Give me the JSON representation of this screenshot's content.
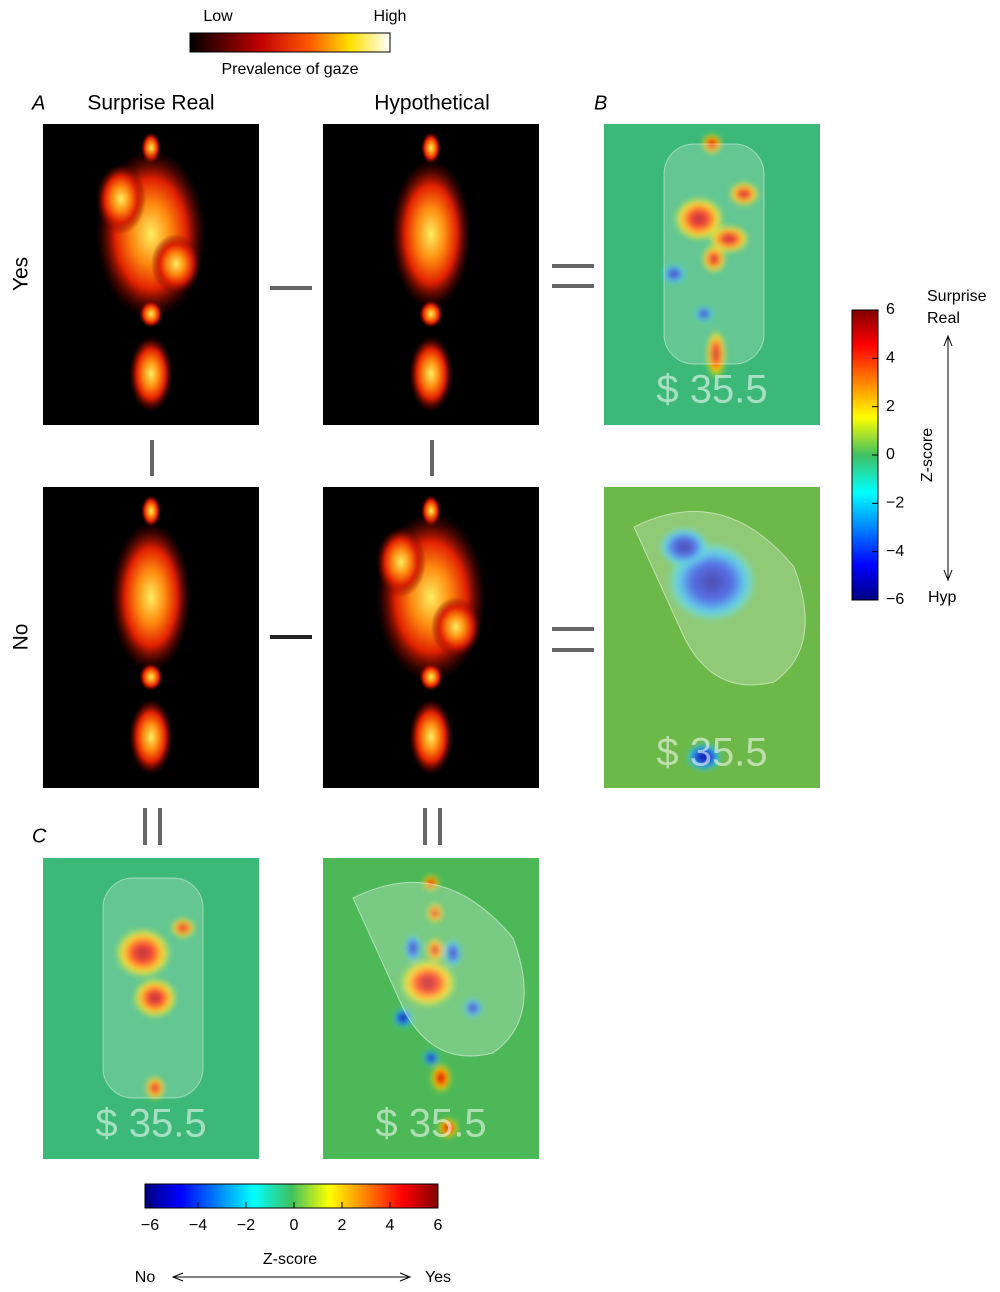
{
  "colorbar_top": {
    "low": "Low",
    "high": "High",
    "label": "Prevalence of gaze"
  },
  "panel_labels": {
    "a": "A",
    "b": "B",
    "c": "C"
  },
  "columns": [
    "Surprise Real",
    "Hypothetical"
  ],
  "rows": [
    "Yes",
    "No"
  ],
  "price_labels": [
    "$ 35.5",
    "$ 35.5",
    "$ 35.5",
    "$ 35.5"
  ],
  "colorbar_right": {
    "zlim": [
      -6,
      6
    ],
    "ticks": [
      6,
      4,
      2,
      0,
      {
        "value": -2,
        "label": "−2"
      },
      {
        "value": -4,
        "label": "−4"
      },
      {
        "value": -6,
        "label": "−6"
      }
    ],
    "label": "Z-score",
    "top_label": [
      "Surprise",
      "Real"
    ],
    "bottom_label": "Hyp"
  },
  "colorbar_bottom": {
    "zlim": [
      -6,
      6
    ],
    "ticks": [
      {
        "value": -6,
        "label": "−6"
      },
      {
        "value": -4,
        "label": "−4"
      },
      {
        "value": -2,
        "label": "−2"
      },
      0,
      2,
      4,
      6
    ],
    "label": "Z-score",
    "left_label": "No",
    "right_label": "Yes"
  }
}
